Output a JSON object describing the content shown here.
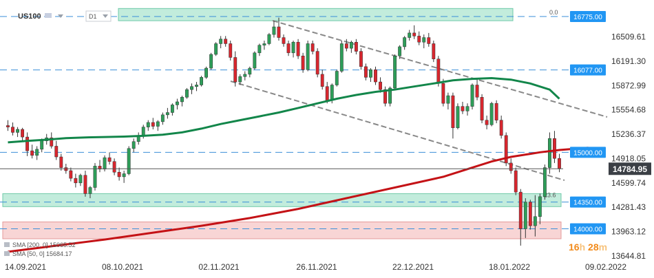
{
  "header": {
    "symbol": "US100",
    "timeframe": "D1"
  },
  "countdown": {
    "hours": "16",
    "hours_unit": "h",
    "minutes": "28",
    "minutes_unit": "m"
  },
  "colors": {
    "up": "#2e9e59",
    "down": "#d8262e",
    "sma50": "#12864a",
    "sma200": "#c41216",
    "resistance_fill": "#8fdcc0",
    "support_fill": "#f3b3b3",
    "level_tag": "#2196f3",
    "price_tag": "#3b3f45",
    "channel": "#888888",
    "dash": "#3a8ed8"
  },
  "chart_data": {
    "type": "candlestick",
    "x_ticks": [
      "14.09.2021",
      "08.10.2021",
      "02.11.2021",
      "26.11.2021",
      "22.12.2021",
      "18.01.2022",
      "09.02.2022"
    ],
    "y_ticks": [
      "16509.61",
      "16191.30",
      "15872.99",
      "15554.68",
      "15236.37",
      "14918.05",
      "14599.74",
      "14281.43",
      "13963.12",
      "13644.81"
    ],
    "ylim": [
      13600,
      16900
    ],
    "last_price": "14784.95",
    "levels": [
      {
        "label": "16775.00",
        "value": 16775,
        "zone": [
          16720,
          16880
        ],
        "color": "resistance_fill"
      },
      {
        "label": "16077.00",
        "value": 16077
      },
      {
        "label": "15000.00",
        "value": 15000
      },
      {
        "label": "14350.00",
        "value": 14350,
        "zone": [
          14290,
          14460
        ],
        "color": "resistance_fill"
      },
      {
        "label": "14000.00",
        "value": 14000,
        "zone": [
          13870,
          14090
        ],
        "color": "support_fill"
      }
    ],
    "fibo": [
      {
        "label": "0.0",
        "value": 16775
      },
      {
        "label": "23.6",
        "value": 14385
      }
    ],
    "indicators": [
      {
        "name": "SMA [200, 0]",
        "value": "15065.52"
      },
      {
        "name": "SMA [50, 0]",
        "value": "15684.17"
      }
    ],
    "candles": [
      [
        15350,
        15420,
        15280,
        15330
      ],
      [
        15330,
        15390,
        15220,
        15260
      ],
      [
        15260,
        15330,
        15200,
        15300
      ],
      [
        15300,
        15320,
        15150,
        15200
      ],
      [
        15200,
        15260,
        14950,
        15020
      ],
      [
        15020,
        15100,
        14920,
        14960
      ],
      [
        14960,
        15080,
        14900,
        15040
      ],
      [
        15040,
        15180,
        15000,
        15150
      ],
      [
        15150,
        15240,
        15100,
        15190
      ],
      [
        15190,
        15260,
        15050,
        15080
      ],
      [
        15080,
        15150,
        14900,
        14940
      ],
      [
        14940,
        14980,
        14760,
        14800
      ],
      [
        14800,
        14850,
        14720,
        14760
      ],
      [
        14760,
        14800,
        14620,
        14660
      ],
      [
        14660,
        14720,
        14540,
        14600
      ],
      [
        14600,
        14720,
        14560,
        14700
      ],
      [
        14700,
        14760,
        14420,
        14460
      ],
      [
        14460,
        14560,
        14400,
        14540
      ],
      [
        14540,
        14860,
        14500,
        14820
      ],
      [
        14820,
        14900,
        14740,
        14780
      ],
      [
        14780,
        14960,
        14750,
        14930
      ],
      [
        14930,
        15000,
        14840,
        14880
      ],
      [
        14880,
        14920,
        14700,
        14740
      ],
      [
        14740,
        14800,
        14630,
        14680
      ],
      [
        14680,
        14760,
        14600,
        14720
      ],
      [
        14720,
        15080,
        14700,
        15050
      ],
      [
        15050,
        15180,
        15000,
        15140
      ],
      [
        15140,
        15260,
        15100,
        15220
      ],
      [
        15220,
        15360,
        15180,
        15330
      ],
      [
        15330,
        15420,
        15280,
        15390
      ],
      [
        15390,
        15450,
        15300,
        15340
      ],
      [
        15340,
        15420,
        15280,
        15400
      ],
      [
        15400,
        15520,
        15360,
        15490
      ],
      [
        15490,
        15580,
        15440,
        15520
      ],
      [
        15520,
        15640,
        15480,
        15620
      ],
      [
        15620,
        15700,
        15560,
        15660
      ],
      [
        15660,
        15740,
        15600,
        15720
      ],
      [
        15720,
        15840,
        15700,
        15820
      ],
      [
        15820,
        15900,
        15760,
        15860
      ],
      [
        15860,
        15920,
        15800,
        15880
      ],
      [
        15880,
        16000,
        15860,
        15980
      ],
      [
        15980,
        16120,
        15960,
        16100
      ],
      [
        16100,
        16300,
        16080,
        16280
      ],
      [
        16280,
        16440,
        16260,
        16420
      ],
      [
        16420,
        16520,
        16360,
        16480
      ],
      [
        16480,
        16520,
        16380,
        16420
      ],
      [
        16420,
        16460,
        16200,
        16240
      ],
      [
        16240,
        16320,
        15860,
        15920
      ],
      [
        15920,
        16020,
        15880,
        15990
      ],
      [
        15990,
        16060,
        15940,
        16020
      ],
      [
        16020,
        16120,
        15980,
        16100
      ],
      [
        16100,
        16320,
        16080,
        16300
      ],
      [
        16300,
        16420,
        16260,
        16400
      ],
      [
        16400,
        16460,
        16340,
        16420
      ],
      [
        16420,
        16560,
        16400,
        16540
      ],
      [
        16540,
        16720,
        16500,
        16640
      ],
      [
        16640,
        16760,
        16460,
        16500
      ],
      [
        16500,
        16540,
        16380,
        16420
      ],
      [
        16420,
        16460,
        16260,
        16300
      ],
      [
        16300,
        16460,
        16240,
        16440
      ],
      [
        16440,
        16480,
        16220,
        16260
      ],
      [
        16260,
        16300,
        16040,
        16080
      ],
      [
        16080,
        16460,
        16060,
        16420
      ],
      [
        16420,
        16460,
        16280,
        16320
      ],
      [
        16320,
        16360,
        15980,
        16020
      ],
      [
        16020,
        16080,
        15820,
        15860
      ],
      [
        15860,
        15920,
        15640,
        15680
      ],
      [
        15680,
        15900,
        15640,
        15880
      ],
      [
        15880,
        16080,
        15860,
        16060
      ],
      [
        16060,
        16460,
        16040,
        16420
      ],
      [
        16420,
        16480,
        16320,
        16360
      ],
      [
        16360,
        16460,
        16300,
        16440
      ],
      [
        16440,
        16480,
        16280,
        16320
      ],
      [
        16320,
        16360,
        16080,
        16120
      ],
      [
        16120,
        16160,
        15940,
        15980
      ],
      [
        15980,
        16100,
        15920,
        16080
      ],
      [
        16080,
        16120,
        15880,
        15920
      ],
      [
        15920,
        15980,
        15780,
        15820
      ],
      [
        15820,
        15860,
        15600,
        15640
      ],
      [
        15640,
        15860,
        15600,
        15840
      ],
      [
        15840,
        16280,
        15820,
        16260
      ],
      [
        16260,
        16400,
        16220,
        16380
      ],
      [
        16380,
        16520,
        16340,
        16500
      ],
      [
        16500,
        16600,
        16460,
        16560
      ],
      [
        16560,
        16660,
        16480,
        16520
      ],
      [
        16520,
        16580,
        16400,
        16440
      ],
      [
        16440,
        16540,
        16360,
        16500
      ],
      [
        16500,
        16560,
        16380,
        16420
      ],
      [
        16420,
        16460,
        16180,
        16220
      ],
      [
        16220,
        16260,
        15860,
        15900
      ],
      [
        15900,
        15960,
        15600,
        15640
      ],
      [
        15640,
        15780,
        15560,
        15740
      ],
      [
        15740,
        15780,
        15180,
        15320
      ],
      [
        15320,
        15640,
        15300,
        15600
      ],
      [
        15600,
        15660,
        15500,
        15540
      ],
      [
        15540,
        15640,
        15480,
        15600
      ],
      [
        15600,
        15900,
        15560,
        15880
      ],
      [
        15880,
        15960,
        15680,
        15720
      ],
      [
        15720,
        15760,
        15380,
        15420
      ],
      [
        15420,
        15480,
        15300,
        15360
      ],
      [
        15360,
        15660,
        15340,
        15640
      ],
      [
        15640,
        15680,
        15380,
        15420
      ],
      [
        15420,
        15480,
        15180,
        15220
      ],
      [
        15220,
        15260,
        14820,
        14860
      ],
      [
        14860,
        14920,
        14720,
        14760
      ],
      [
        14760,
        14800,
        14440,
        14480
      ],
      [
        14480,
        14520,
        13780,
        14000
      ],
      [
        14000,
        14400,
        13880,
        14350
      ],
      [
        14350,
        14380,
        13990,
        14040
      ],
      [
        14040,
        14440,
        13900,
        14160
      ],
      [
        14160,
        14460,
        14060,
        14420
      ],
      [
        14420,
        14840,
        14380,
        14800
      ],
      [
        14800,
        15260,
        14720,
        15180
      ],
      [
        15180,
        15280,
        14860,
        14920
      ],
      [
        14920,
        14980,
        14740,
        14790
      ]
    ],
    "sma50": [
      [
        0,
        15130
      ],
      [
        4,
        15150
      ],
      [
        8,
        15165
      ],
      [
        12,
        15185
      ],
      [
        16,
        15195
      ],
      [
        20,
        15200
      ],
      [
        24,
        15205
      ],
      [
        28,
        15215
      ],
      [
        32,
        15230
      ],
      [
        36,
        15260
      ],
      [
        40,
        15310
      ],
      [
        44,
        15370
      ],
      [
        48,
        15420
      ],
      [
        52,
        15470
      ],
      [
        56,
        15520
      ],
      [
        60,
        15580
      ],
      [
        64,
        15640
      ],
      [
        68,
        15700
      ],
      [
        72,
        15750
      ],
      [
        76,
        15790
      ],
      [
        80,
        15820
      ],
      [
        84,
        15860
      ],
      [
        88,
        15900
      ],
      [
        92,
        15940
      ],
      [
        96,
        15960
      ],
      [
        100,
        15970
      ],
      [
        104,
        15950
      ],
      [
        108,
        15900
      ],
      [
        112,
        15820
      ],
      [
        114,
        15700
      ]
    ],
    "sma200": [
      [
        0,
        13700
      ],
      [
        10,
        13780
      ],
      [
        20,
        13860
      ],
      [
        30,
        13950
      ],
      [
        40,
        14040
      ],
      [
        50,
        14140
      ],
      [
        60,
        14260
      ],
      [
        70,
        14400
      ],
      [
        80,
        14540
      ],
      [
        90,
        14680
      ],
      [
        96,
        14800
      ],
      [
        100,
        14880
      ],
      [
        104,
        14940
      ],
      [
        108,
        14980
      ],
      [
        110,
        15000
      ],
      [
        114,
        15030
      ],
      [
        118,
        15050
      ],
      [
        120,
        15060
      ]
    ]
  }
}
